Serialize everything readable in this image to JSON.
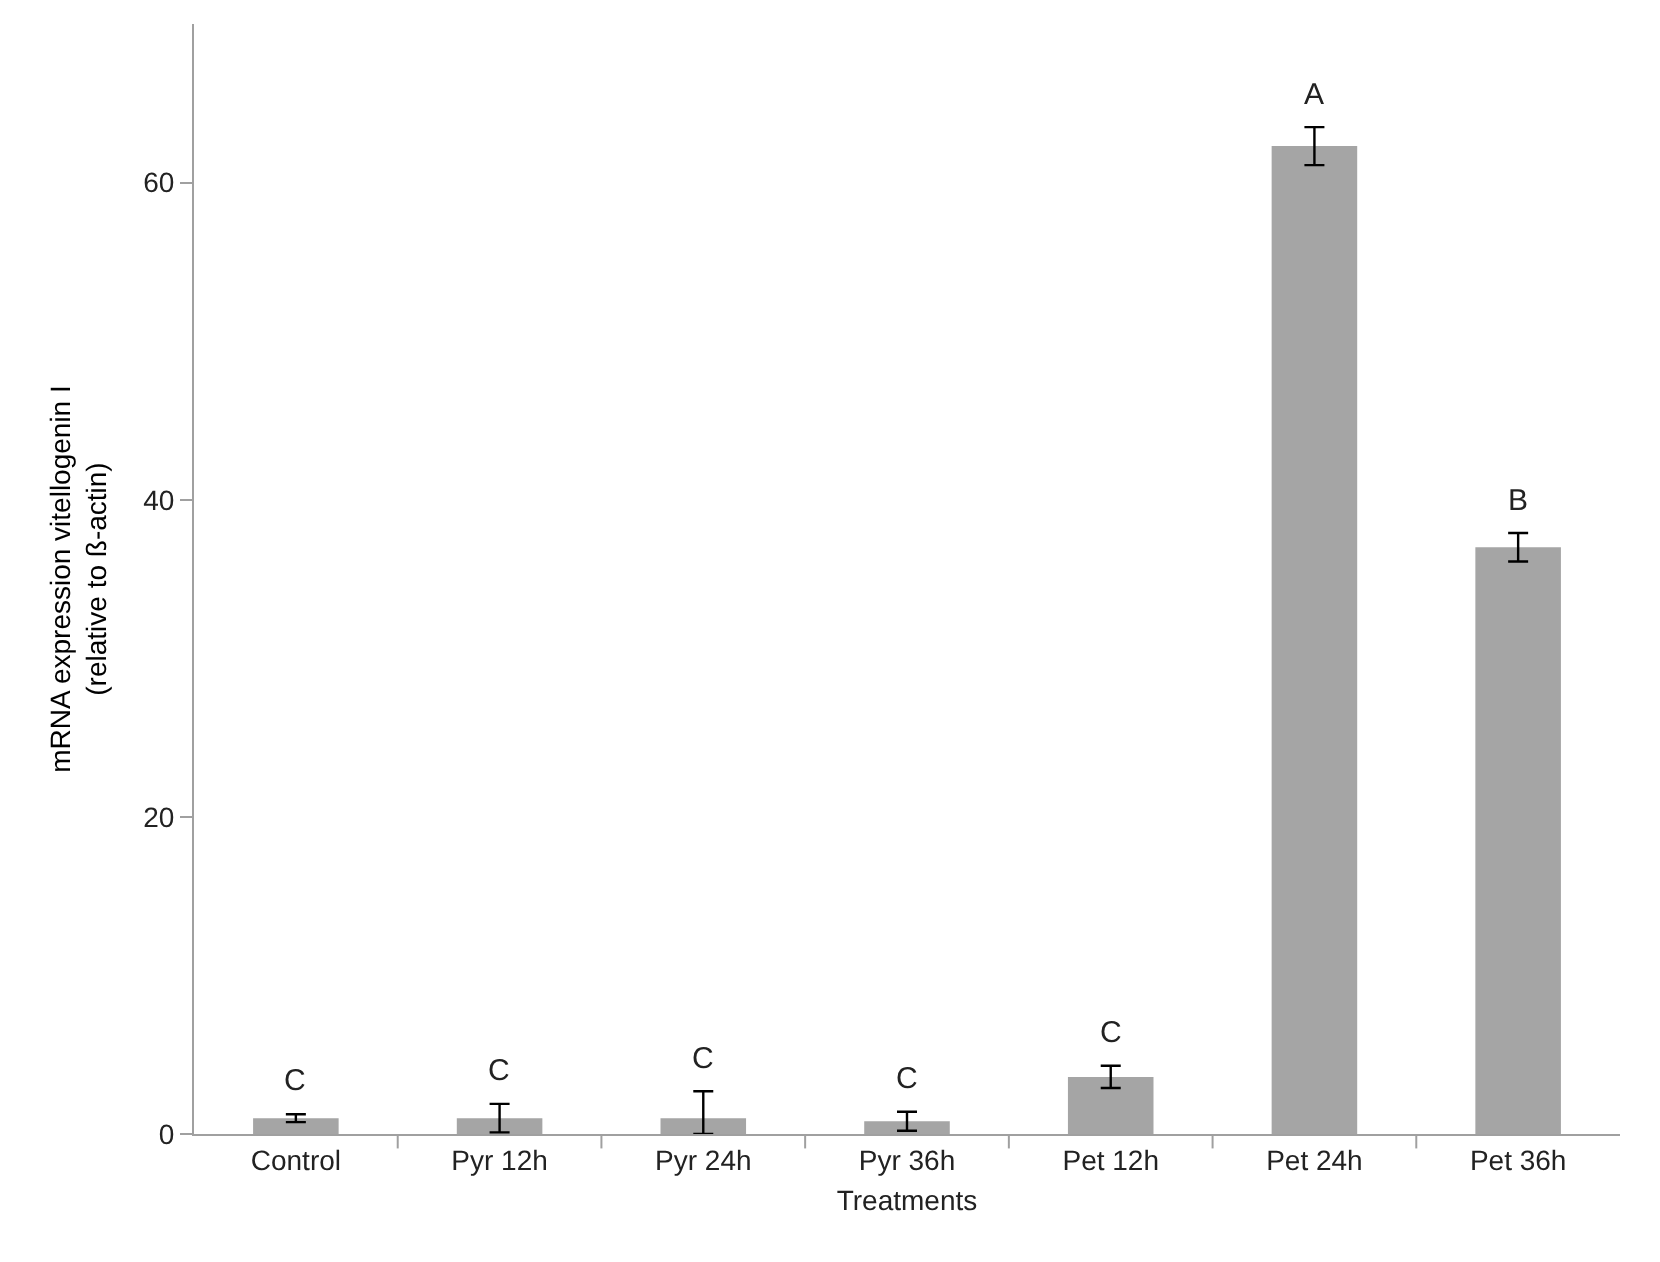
{
  "chart_data": {
    "type": "bar",
    "xlabel": "Treatments",
    "ylabel": "mRNA expression vitellogenin I\n(relative to ß-actin)",
    "categories": [
      "Control",
      "Pyr 12h",
      "Pyr 24h",
      "Pyr 36h",
      "Pet 12h",
      "Pet 24h",
      "Pet 36h"
    ],
    "values": [
      1.0,
      1.0,
      1.0,
      0.8,
      3.6,
      62.3,
      37.0
    ],
    "errors": [
      0.25,
      0.9,
      [
        0,
        2.7
      ],
      0.6,
      0.7,
      [
        61.1,
        63.5
      ],
      0.9
    ],
    "color": "#a5a5a5",
    "ylim": [
      0,
      70
    ],
    "yticks": [
      0,
      20,
      40,
      60
    ],
    "legend": false,
    "annotations": [
      "C",
      "C",
      "C",
      "C",
      "C",
      "A",
      "B"
    ]
  }
}
